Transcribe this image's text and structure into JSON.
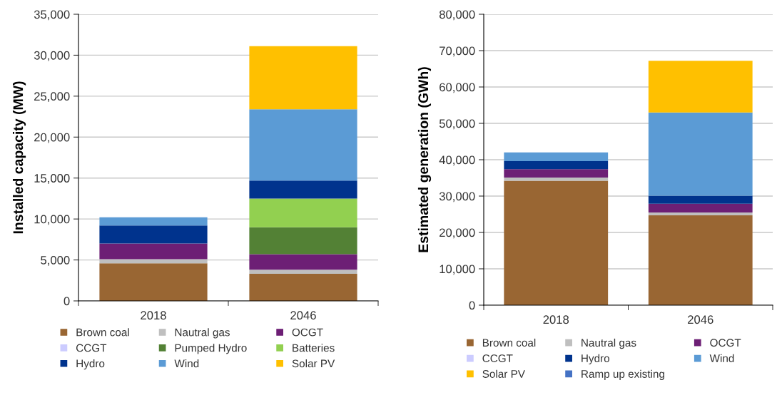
{
  "chart_data": [
    {
      "type": "bar",
      "stacked": true,
      "ylabel": "Installed capacity (MW)",
      "categories": [
        "2018",
        "2046"
      ],
      "ylim": [
        0,
        35000
      ],
      "yticks": [
        {
          "value": 0,
          "label": "0"
        },
        {
          "value": 5000,
          "label": "5,000"
        },
        {
          "value": 10000,
          "label": "10,000"
        },
        {
          "value": 15000,
          "label": "15,000"
        },
        {
          "value": 20000,
          "label": "20,000"
        },
        {
          "value": 25000,
          "label": "25,000"
        },
        {
          "value": 30000,
          "label": "30,000"
        },
        {
          "value": 35000,
          "label": "35,000"
        }
      ],
      "grid": "y",
      "legend": "bottom",
      "series": [
        {
          "name": "Brown coal",
          "color": "#996633",
          "values": [
            4600,
            3300
          ]
        },
        {
          "name": "Nautral gas",
          "color": "#bfbfbf",
          "values": [
            500,
            500
          ]
        },
        {
          "name": "OCGT",
          "color": "#6d1f75",
          "values": [
            1900,
            1900
          ]
        },
        {
          "name": "CCGT",
          "color": "#ccccff",
          "values": [
            0,
            0
          ]
        },
        {
          "name": "Pumped Hydro",
          "color": "#538135",
          "values": [
            0,
            3300
          ]
        },
        {
          "name": "Batteries",
          "color": "#92d050",
          "values": [
            0,
            3500
          ]
        },
        {
          "name": "Hydro",
          "color": "#00338d",
          "values": [
            2200,
            2200
          ]
        },
        {
          "name": "Wind",
          "color": "#5b9bd5",
          "values": [
            1000,
            8700
          ]
        },
        {
          "name": "Solar PV",
          "color": "#ffc000",
          "values": [
            0,
            7700
          ]
        }
      ]
    },
    {
      "type": "bar",
      "stacked": true,
      "ylabel": "Estimated generation (GWh)",
      "categories": [
        "2018",
        "2046"
      ],
      "ylim": [
        0,
        80000
      ],
      "yticks": [
        {
          "value": 0,
          "label": "0"
        },
        {
          "value": 10000,
          "label": "10,000"
        },
        {
          "value": 20000,
          "label": "20,000"
        },
        {
          "value": 30000,
          "label": "30,000"
        },
        {
          "value": 40000,
          "label": "40,000"
        },
        {
          "value": 50000,
          "label": "50,000"
        },
        {
          "value": 60000,
          "label": "60,000"
        },
        {
          "value": 70000,
          "label": "70,000"
        },
        {
          "value": 80000,
          "label": "80,000"
        }
      ],
      "grid": "y",
      "legend": "bottom",
      "series": [
        {
          "name": "Brown coal",
          "color": "#996633",
          "values": [
            34200,
            24700
          ]
        },
        {
          "name": "Nautral gas",
          "color": "#bfbfbf",
          "values": [
            900,
            800
          ]
        },
        {
          "name": "OCGT",
          "color": "#6d1f75",
          "values": [
            2300,
            2400
          ]
        },
        {
          "name": "CCGT",
          "color": "#ccccff",
          "values": [
            0,
            0
          ]
        },
        {
          "name": "Hydro",
          "color": "#00338d",
          "values": [
            2200,
            2200
          ]
        },
        {
          "name": "Wind",
          "color": "#5b9bd5",
          "values": [
            2400,
            22900
          ]
        },
        {
          "name": "Solar PV",
          "color": "#ffc000",
          "values": [
            0,
            14200
          ]
        },
        {
          "name": "Ramp up existing",
          "color": "#4472c4",
          "values": [
            0,
            0
          ]
        }
      ]
    }
  ]
}
